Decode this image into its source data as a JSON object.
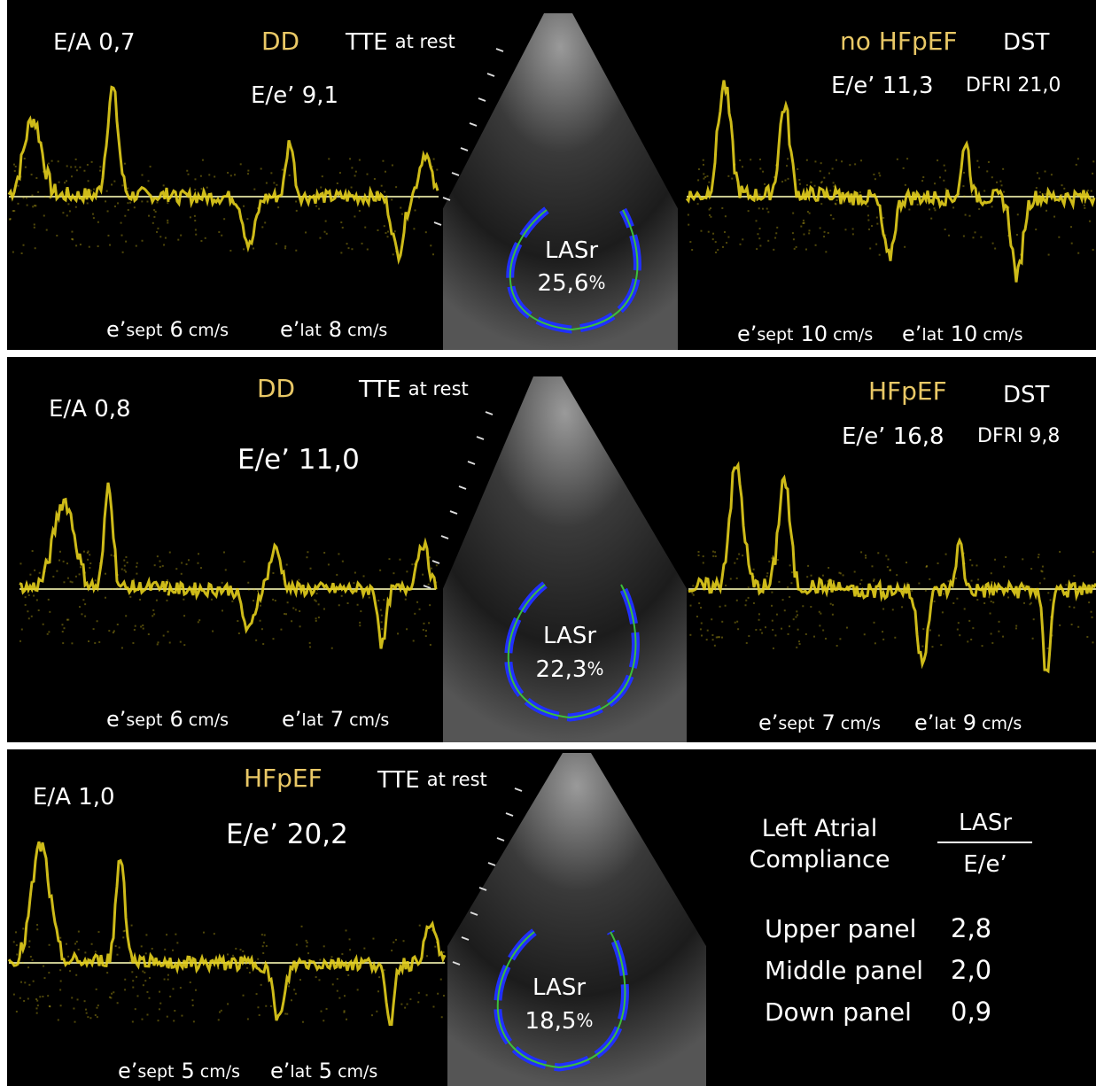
{
  "panels": [
    {
      "ea": "E/A 0,7",
      "diagnosis": "DD",
      "exam": "TTE",
      "exam_detail": "at rest",
      "ee": "E/e’ 9,1",
      "lasr_label": "LASr",
      "lasr_value": "25,6",
      "lasr_unit": "%",
      "e_sept": {
        "prefix": "e’",
        "sub": "sept",
        "value": "6",
        "unit": "cm/s"
      },
      "e_lat": {
        "prefix": "e’",
        "sub": "lat",
        "value": "8",
        "unit": "cm/s"
      },
      "dst": {
        "diagnosis": "no HFpEF",
        "label": "DST",
        "ee": "E/e’ 11,3",
        "dfri": "DFRI 21,0",
        "e_sept": {
          "prefix": "e’",
          "sub": "sept",
          "value": "10",
          "unit": "cm/s"
        },
        "e_lat": {
          "prefix": "e’",
          "sub": "lat",
          "value": "10",
          "unit": "cm/s"
        }
      }
    },
    {
      "ea": "E/A 0,8",
      "diagnosis": "DD",
      "exam": "TTE",
      "exam_detail": "at rest",
      "ee": "E/e’ 11,0",
      "lasr_label": "LASr",
      "lasr_value": "22,3",
      "lasr_unit": "%",
      "e_sept": {
        "prefix": "e’",
        "sub": "sept",
        "value": "6",
        "unit": "cm/s"
      },
      "e_lat": {
        "prefix": "e’",
        "sub": "lat",
        "value": "7",
        "unit": "cm/s"
      },
      "dst": {
        "diagnosis": "HFpEF",
        "label": "DST",
        "ee": "E/e’ 16,8",
        "dfri": "DFRI 9,8",
        "e_sept": {
          "prefix": "e’",
          "sub": "sept",
          "value": "7",
          "unit": "cm/s"
        },
        "e_lat": {
          "prefix": "e’",
          "sub": "lat",
          "value": "9",
          "unit": "cm/s"
        }
      }
    },
    {
      "ea": "E/A 1,0",
      "diagnosis": "HFpEF",
      "exam": "TTE",
      "exam_detail": "at rest",
      "ee": "E/e’ 20,2",
      "lasr_label": "LASr",
      "lasr_value": "18,5",
      "lasr_unit": "%",
      "e_sept": {
        "prefix": "e’",
        "sub": "sept",
        "value": "5",
        "unit": "cm/s"
      },
      "e_lat": {
        "prefix": "e’",
        "sub": "lat",
        "value": "5",
        "unit": "cm/s"
      }
    }
  ],
  "compliance": {
    "title_line1": "Left Atrial",
    "title_line2": "Compliance",
    "numerator": "LASr",
    "denominator": "E/e’",
    "rows": [
      [
        "Upper panel",
        "2,8"
      ],
      [
        "Middle panel",
        "2,0"
      ],
      [
        "Down panel",
        "0,9"
      ]
    ]
  }
}
